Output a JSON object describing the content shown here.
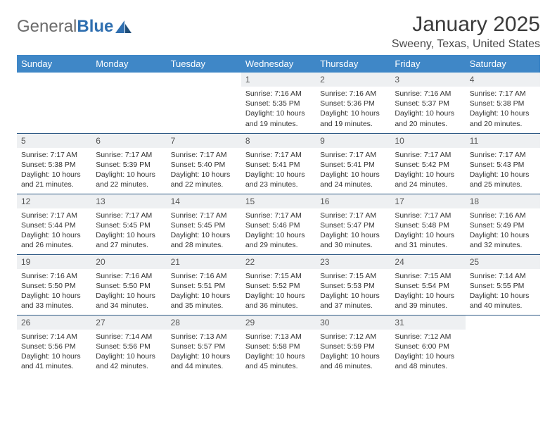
{
  "brand": {
    "part1": "General",
    "part2": "Blue"
  },
  "title": "January 2025",
  "location": "Sweeny, Texas, United States",
  "colors": {
    "header_bg": "#3f87c7",
    "header_fg": "#ffffff",
    "rule": "#2f5a85",
    "daynum_bg": "#eef0f2",
    "logo_gray": "#6b6b6b",
    "logo_blue": "#2f6fb0"
  },
  "weekdays": [
    "Sunday",
    "Monday",
    "Tuesday",
    "Wednesday",
    "Thursday",
    "Friday",
    "Saturday"
  ],
  "first_weekday_index": 3,
  "days": [
    {
      "n": 1,
      "sr": "7:16 AM",
      "ss": "5:35 PM",
      "dl": "10 hours and 19 minutes."
    },
    {
      "n": 2,
      "sr": "7:16 AM",
      "ss": "5:36 PM",
      "dl": "10 hours and 19 minutes."
    },
    {
      "n": 3,
      "sr": "7:16 AM",
      "ss": "5:37 PM",
      "dl": "10 hours and 20 minutes."
    },
    {
      "n": 4,
      "sr": "7:17 AM",
      "ss": "5:38 PM",
      "dl": "10 hours and 20 minutes."
    },
    {
      "n": 5,
      "sr": "7:17 AM",
      "ss": "5:38 PM",
      "dl": "10 hours and 21 minutes."
    },
    {
      "n": 6,
      "sr": "7:17 AM",
      "ss": "5:39 PM",
      "dl": "10 hours and 22 minutes."
    },
    {
      "n": 7,
      "sr": "7:17 AM",
      "ss": "5:40 PM",
      "dl": "10 hours and 22 minutes."
    },
    {
      "n": 8,
      "sr": "7:17 AM",
      "ss": "5:41 PM",
      "dl": "10 hours and 23 minutes."
    },
    {
      "n": 9,
      "sr": "7:17 AM",
      "ss": "5:41 PM",
      "dl": "10 hours and 24 minutes."
    },
    {
      "n": 10,
      "sr": "7:17 AM",
      "ss": "5:42 PM",
      "dl": "10 hours and 24 minutes."
    },
    {
      "n": 11,
      "sr": "7:17 AM",
      "ss": "5:43 PM",
      "dl": "10 hours and 25 minutes."
    },
    {
      "n": 12,
      "sr": "7:17 AM",
      "ss": "5:44 PM",
      "dl": "10 hours and 26 minutes."
    },
    {
      "n": 13,
      "sr": "7:17 AM",
      "ss": "5:45 PM",
      "dl": "10 hours and 27 minutes."
    },
    {
      "n": 14,
      "sr": "7:17 AM",
      "ss": "5:45 PM",
      "dl": "10 hours and 28 minutes."
    },
    {
      "n": 15,
      "sr": "7:17 AM",
      "ss": "5:46 PM",
      "dl": "10 hours and 29 minutes."
    },
    {
      "n": 16,
      "sr": "7:17 AM",
      "ss": "5:47 PM",
      "dl": "10 hours and 30 minutes."
    },
    {
      "n": 17,
      "sr": "7:17 AM",
      "ss": "5:48 PM",
      "dl": "10 hours and 31 minutes."
    },
    {
      "n": 18,
      "sr": "7:16 AM",
      "ss": "5:49 PM",
      "dl": "10 hours and 32 minutes."
    },
    {
      "n": 19,
      "sr": "7:16 AM",
      "ss": "5:50 PM",
      "dl": "10 hours and 33 minutes."
    },
    {
      "n": 20,
      "sr": "7:16 AM",
      "ss": "5:50 PM",
      "dl": "10 hours and 34 minutes."
    },
    {
      "n": 21,
      "sr": "7:16 AM",
      "ss": "5:51 PM",
      "dl": "10 hours and 35 minutes."
    },
    {
      "n": 22,
      "sr": "7:15 AM",
      "ss": "5:52 PM",
      "dl": "10 hours and 36 minutes."
    },
    {
      "n": 23,
      "sr": "7:15 AM",
      "ss": "5:53 PM",
      "dl": "10 hours and 37 minutes."
    },
    {
      "n": 24,
      "sr": "7:15 AM",
      "ss": "5:54 PM",
      "dl": "10 hours and 39 minutes."
    },
    {
      "n": 25,
      "sr": "7:14 AM",
      "ss": "5:55 PM",
      "dl": "10 hours and 40 minutes."
    },
    {
      "n": 26,
      "sr": "7:14 AM",
      "ss": "5:56 PM",
      "dl": "10 hours and 41 minutes."
    },
    {
      "n": 27,
      "sr": "7:14 AM",
      "ss": "5:56 PM",
      "dl": "10 hours and 42 minutes."
    },
    {
      "n": 28,
      "sr": "7:13 AM",
      "ss": "5:57 PM",
      "dl": "10 hours and 44 minutes."
    },
    {
      "n": 29,
      "sr": "7:13 AM",
      "ss": "5:58 PM",
      "dl": "10 hours and 45 minutes."
    },
    {
      "n": 30,
      "sr": "7:12 AM",
      "ss": "5:59 PM",
      "dl": "10 hours and 46 minutes."
    },
    {
      "n": 31,
      "sr": "7:12 AM",
      "ss": "6:00 PM",
      "dl": "10 hours and 48 minutes."
    }
  ],
  "labels": {
    "sunrise": "Sunrise:",
    "sunset": "Sunset:",
    "daylight": "Daylight:"
  }
}
